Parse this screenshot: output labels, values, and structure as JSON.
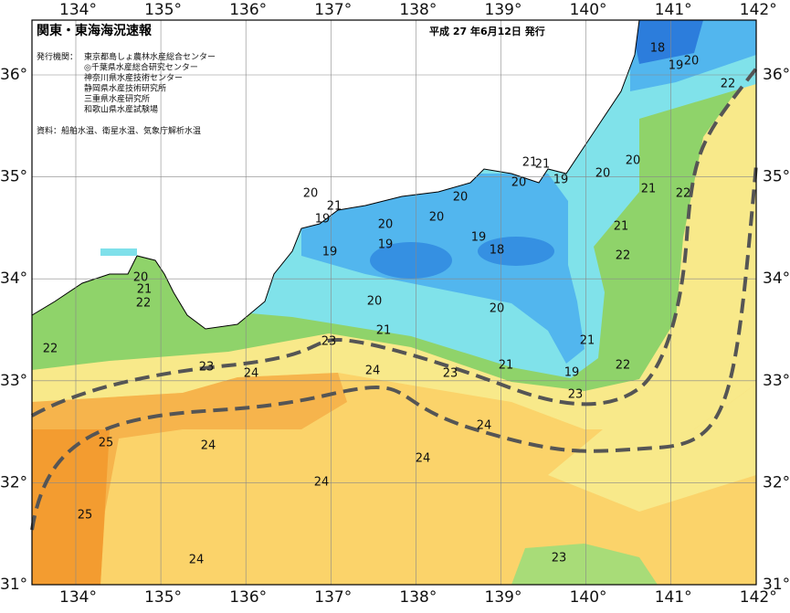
{
  "header": {
    "title": "関東・東海海況速報",
    "date": "平成 27 年6月12日 発行"
  },
  "issuers": {
    "label": "発行機関：",
    "agencies": [
      "東京都島しょ農林水産総合センター",
      "◎千葉県水産総合研究センター",
      "神奈川県水産技術センター",
      "静岡県水産技術研究所",
      "三重県水産研究所",
      "和歌山県水産試験場"
    ]
  },
  "source": "資料：船舶水温、衛星水温、気象庁解析水温",
  "lon_labels": [
    "134°",
    "135°",
    "136°",
    "137°",
    "138°",
    "139°",
    "140°",
    "141°",
    "142°"
  ],
  "lat_labels": [
    "36°",
    "35°",
    "34°",
    "33°",
    "32°",
    "31°"
  ],
  "contour_labels": [
    18,
    19,
    20,
    22,
    20,
    20,
    21,
    22,
    21,
    21,
    20,
    19,
    20,
    20,
    20,
    21,
    19,
    20,
    19,
    19,
    18,
    19,
    21,
    22,
    20,
    21,
    22,
    20,
    20,
    21,
    21,
    22,
    23,
    23,
    24,
    24,
    23,
    21,
    19,
    22,
    23,
    24,
    24,
    25,
    24,
    24,
    25,
    24,
    23
  ]
}
